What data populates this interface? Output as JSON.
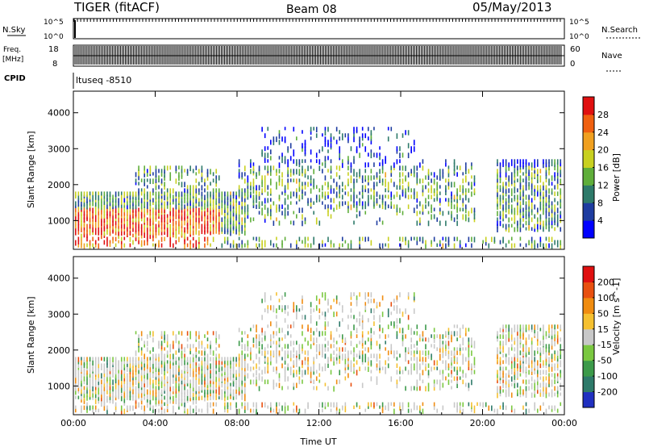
{
  "header": {
    "title": "TIGER (fitACF)",
    "beam": "Beam 08",
    "date": "05/May/2013"
  },
  "top_panels": {
    "nsky_label": "N.Sky",
    "nsky_ticks": [
      "10^5",
      "10^0"
    ],
    "nsearch_label": "N.Search",
    "nsearch_ticks": [
      "10^5",
      "10^0"
    ],
    "freq_label": "Freq.",
    "freq_unit": "[MHz]",
    "freq_ticks": [
      "18",
      "8"
    ],
    "nave_label": "Nave",
    "nave_ticks": [
      "60",
      "0"
    ],
    "cpid_label": "CPID",
    "cpid_value": "ltuseq -8510"
  },
  "chart_data": [
    {
      "type": "heatmap",
      "panel": "power",
      "ylabel": "Slant Range [km]",
      "ylim": [
        200,
        4600
      ],
      "y_ticks": [
        "1000",
        "2000",
        "3000",
        "4000"
      ],
      "x_ticks": [
        "00:00",
        "04:00",
        "08:00",
        "12:00",
        "16:00",
        "20:00",
        "00:00"
      ],
      "colorbar": {
        "label": "Power [dB]",
        "ticks": [
          "28",
          "24",
          "20",
          "16",
          "12",
          "8",
          "4"
        ],
        "colors": [
          "#0000ff",
          "#1e3ca0",
          "#2e7a6a",
          "#5fae3a",
          "#c8d020",
          "#f0a020",
          "#f06010",
          "#e01010"
        ]
      }
    },
    {
      "type": "heatmap",
      "panel": "velocity",
      "ylabel": "Slant Range [km]",
      "ylim": [
        200,
        4600
      ],
      "y_ticks": [
        "1000",
        "2000",
        "3000",
        "4000"
      ],
      "x_ticks": [
        "00:00",
        "04:00",
        "08:00",
        "12:00",
        "16:00",
        "20:00",
        "00:00"
      ],
      "xlabel": "Time UT",
      "colorbar": {
        "label": "Velocity [m s^-1]",
        "ticks": [
          "200",
          "100",
          "50",
          "15",
          "-15",
          "-50",
          "-100",
          "-200"
        ],
        "colors": [
          "#2030c0",
          "#2e7a6a",
          "#3c9a4a",
          "#7ac840",
          "#c8c8c8",
          "#f5c030",
          "#f08c10",
          "#e85010",
          "#e01010"
        ]
      }
    }
  ]
}
